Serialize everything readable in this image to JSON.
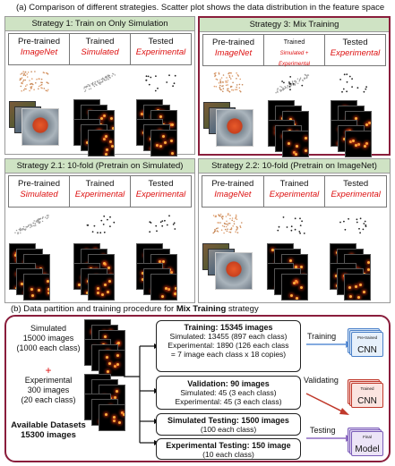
{
  "caption_a": "(a) Comparison of different strategies. Scatter plot shows the data distribution in the feature space",
  "caption_b_pre": "(b) Data partition and training procedure for ",
  "caption_b_bold": "Mix Training",
  "caption_b_post": " strategy",
  "panels": [
    {
      "title": "Strategy 1: Train on Only Simulation",
      "cells": [
        {
          "top": "Pre-trained",
          "sub": "ImageNet"
        },
        {
          "top": "Trained",
          "sub": "Simulated"
        },
        {
          "top": "Tested",
          "sub": "Experimental"
        }
      ]
    },
    {
      "title": "Strategy 3: Mix Training",
      "cells": [
        {
          "top": "Pre-trained",
          "sub": "ImageNet"
        },
        {
          "top": "Trained",
          "sub": "Simulated + Experimental"
        },
        {
          "top": "Tested",
          "sub": "Experimental"
        }
      ]
    },
    {
      "title": "Strategy 2.1: 10-fold (Pretrain on Simulated)",
      "cells": [
        {
          "top": "Pre-trained",
          "sub": "Simulated"
        },
        {
          "top": "Trained",
          "sub": "Experimental"
        },
        {
          "top": "Tested",
          "sub": "Experimental"
        }
      ]
    },
    {
      "title": "Strategy 2.2: 10-fold (Pretrain on ImageNet)",
      "cells": [
        {
          "top": "Pre-trained",
          "sub": "ImageNet"
        },
        {
          "top": "Trained",
          "sub": "Experimental"
        },
        {
          "top": "Tested",
          "sub": "Experimental"
        }
      ]
    }
  ],
  "left": {
    "sim": "Simulated\n15000 images\n(1000 each class)",
    "plus": "+",
    "exp": "Experimental\n300 images\n(20 each class)",
    "avail": "Available Datasets\n15300 images"
  },
  "boxes": {
    "training_title": "Training: 15345 images",
    "training_l1": "Simulated: 13455 (897 each class)",
    "training_l2": "Experimental: 1890 (126 each class",
    "training_l3": "= 7 image each class x 18 copies)",
    "validation_title": "Validation: 90 images",
    "validation_l1": "Simulated: 45 (3 each class)",
    "validation_l2": "Experimental: 45 (3 each class)",
    "simtest_title": "Simulated Testing: 1500 images",
    "simtest_l1": "(100 each class)",
    "exptest_title": "Experimental Testing: 150 image",
    "exptest_l1": "(10 each class)"
  },
  "flow": {
    "training": "Training",
    "validating": "Validating",
    "testing": "Testing",
    "m1_small": "Pre-trained",
    "m1_label": "CNN",
    "m2_small": "Trained",
    "m2_label": "CNN",
    "m3_small": "Final",
    "m3_label": "Model"
  },
  "colors": {
    "accent": "#8a1e3c",
    "header": "#cfe3c4",
    "red_text": "#d11111"
  }
}
